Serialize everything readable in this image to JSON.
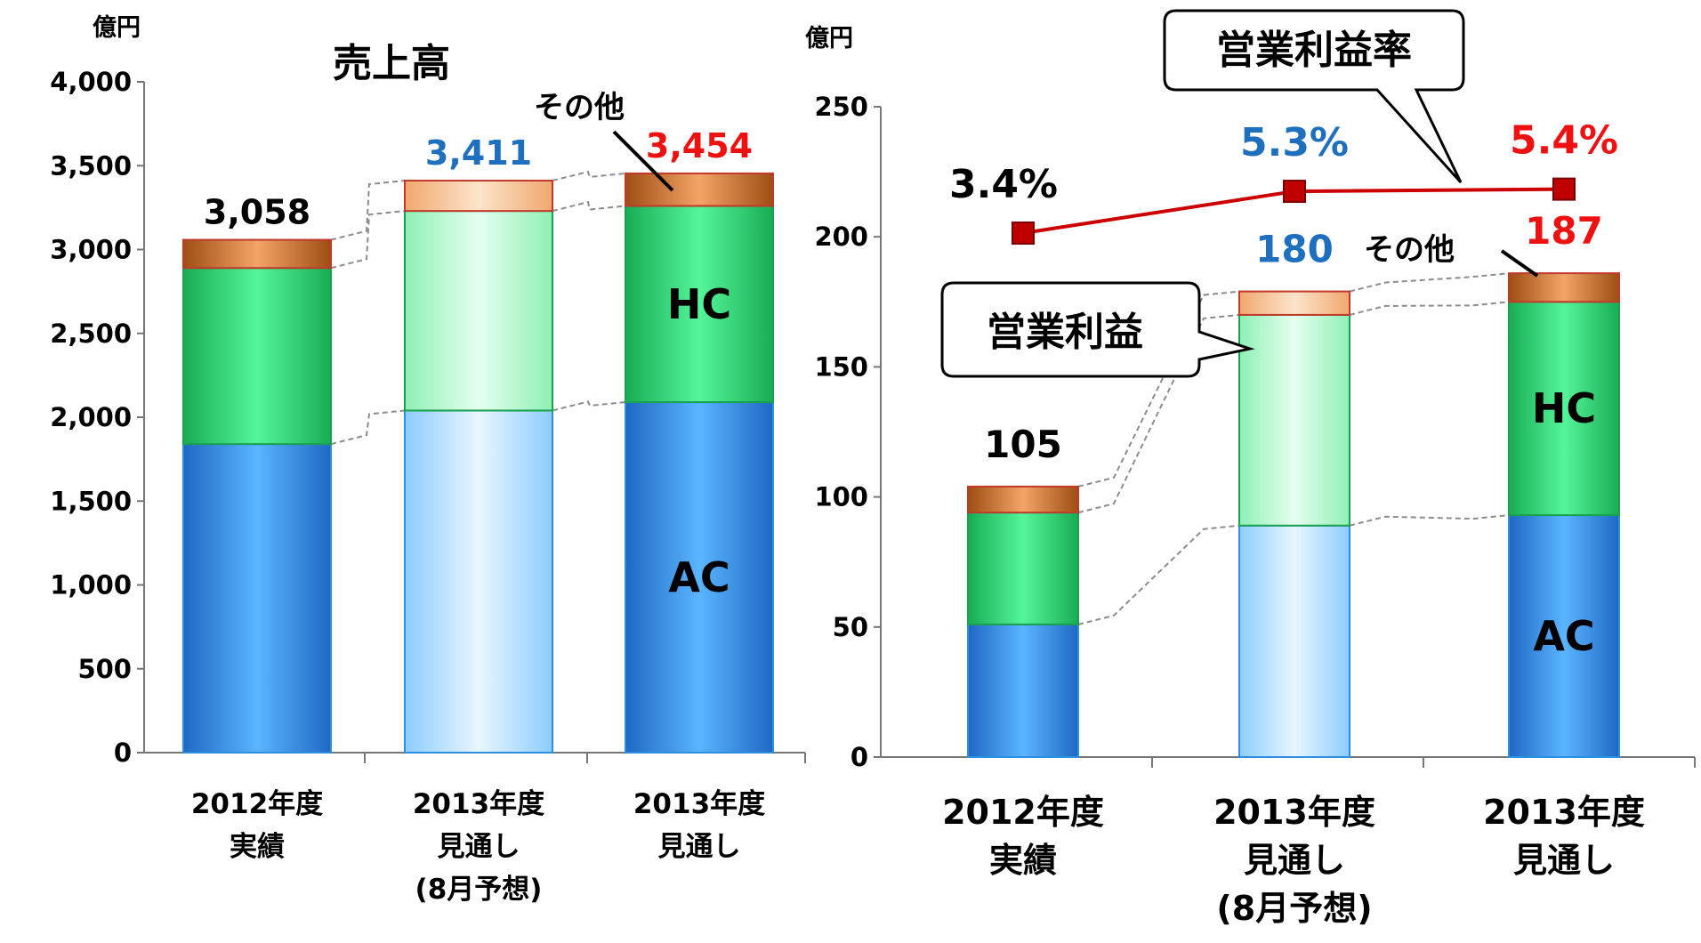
{
  "chart_data": [
    {
      "type": "bar",
      "stacked": true,
      "title": "売上高",
      "unit_label": "億円",
      "categories": [
        [
          "2012年度",
          "実績"
        ],
        [
          "2013年度",
          "見通し",
          "(8月予想)"
        ],
        [
          "2013年度",
          "見通し"
        ]
      ],
      "ylim": [
        0,
        4000
      ],
      "yticks": [
        0,
        500,
        1000,
        1500,
        2000,
        2500,
        3000,
        3500,
        4000
      ],
      "ytick_labels": [
        "0",
        "500",
        "1,000",
        "1,500",
        "2,000",
        "2,500",
        "3,000",
        "3,500",
        "4,000"
      ],
      "series": [
        {
          "name": "AC",
          "values": [
            1840,
            2040,
            2090
          ]
        },
        {
          "name": "HC",
          "values": [
            1050,
            1190,
            1170
          ]
        },
        {
          "name": "その他",
          "values": [
            168,
            181,
            194
          ]
        }
      ],
      "totals": [
        3058,
        3411,
        3454
      ],
      "total_labels": [
        "3,058",
        "3,411",
        "3,454"
      ],
      "total_label_colors": [
        "#000000",
        "#1f6fbf",
        "#ee1111"
      ],
      "series_labels": {
        "ac": "AC",
        "hc": "HC",
        "other": "その他"
      },
      "grid": false
    },
    {
      "type": "bar",
      "stacked": true,
      "title": "営業利益",
      "unit_label": "億円",
      "categories": [
        [
          "2012年度",
          "実績"
        ],
        [
          "2013年度",
          "見通し",
          "(8月予想)"
        ],
        [
          "2013年度",
          "見通し"
        ]
      ],
      "ylim": [
        0,
        250
      ],
      "yticks": [
        0,
        50,
        100,
        150,
        200,
        250
      ],
      "ytick_labels": [
        "0",
        "50",
        "100",
        "150",
        "200",
        "250"
      ],
      "series": [
        {
          "name": "AC",
          "values": [
            51,
            89,
            93
          ]
        },
        {
          "name": "HC",
          "values": [
            43,
            81,
            82
          ]
        },
        {
          "name": "その他",
          "values": [
            10,
            9,
            11
          ]
        }
      ],
      "totals": [
        105,
        180,
        187
      ],
      "total_labels": [
        "105",
        "180",
        "187"
      ],
      "total_label_colors": [
        "#000000",
        "#1f6fbf",
        "#ee1111"
      ],
      "series_labels": {
        "ac": "AC",
        "hc": "HC",
        "other": "その他"
      },
      "line": {
        "name": "営業利益率",
        "values": [
          3.4,
          5.3,
          5.4
        ],
        "value_labels": [
          "3.4%",
          "5.3%",
          "5.4%"
        ],
        "value_label_colors": [
          "#000000",
          "#1f6fbf",
          "#ee1111"
        ],
        "color": "#cc0000",
        "marker_color": "#c00000"
      },
      "grid": false
    }
  ],
  "colors": {
    "ac_dark": "#1e68c4",
    "ac_mid": "#5bb5ff",
    "ac_light_dark": "#8ccdff",
    "ac_light_mid": "#e8f6ff",
    "hc_dark": "#18ad55",
    "hc_mid": "#55f59a",
    "hc_light_dark": "#8ff0b5",
    "hc_light_mid": "#e5fff0",
    "other_dark": "#9e4e13",
    "other_mid": "#f4a467",
    "other_light_dark": "#f0a86e",
    "other_light_mid": "#fde4cc",
    "accent_red": "#ee1111",
    "accent_blue": "#1f6fbf",
    "connector": "#909090"
  }
}
